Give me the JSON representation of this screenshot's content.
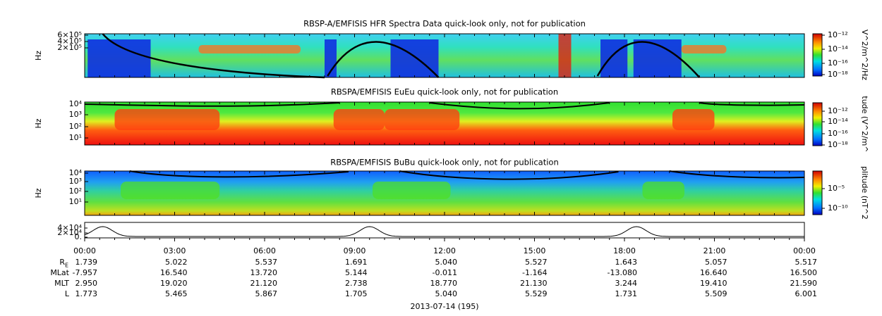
{
  "panels": [
    {
      "title": "RBSP-A/EMFISIS  HFR Spectra Data quick-look only, not for publication",
      "y_label": "Hz",
      "y_ticks": [
        "6×10⁵",
        "4×10⁵",
        "2×10⁵"
      ],
      "colorbar_label": "V^2/m^2/Hz",
      "colorbar_ticks": [
        "10⁻¹²",
        "10⁻¹⁴",
        "10⁻¹⁶",
        "10⁻¹⁸"
      ]
    },
    {
      "title": "RBSPA/EMFISIS  EuEu quick-look only, not for publication",
      "y_label": "Hz",
      "y_ticks": [
        "10⁴",
        "10³",
        "10²",
        "10¹"
      ],
      "colorbar_label": "tude (V^2/m^",
      "colorbar_ticks": [
        "10⁻¹²",
        "10⁻¹⁴",
        "10⁻¹⁶",
        "10⁻¹⁸"
      ]
    },
    {
      "title": "RBSPA/EMFISIS  BuBu quick-look only, not for publication",
      "y_label": "Hz",
      "y_ticks": [
        "10⁴",
        "10³",
        "10²",
        "10¹"
      ],
      "colorbar_label": "plitude (nT^2",
      "colorbar_ticks": [
        "10⁻⁵",
        "10⁻¹⁰"
      ]
    }
  ],
  "line_panel": {
    "y_ticks": [
      "4×10⁴",
      "2×10⁴",
      "0."
    ]
  },
  "time_labels": [
    "00:00",
    "03:00",
    "06:00",
    "09:00",
    "12:00",
    "15:00",
    "18:00",
    "21:00",
    "00:00"
  ],
  "ephemeris": {
    "rows": [
      {
        "label": "R",
        "sub": "E",
        "values": [
          "1.739",
          "5.022",
          "5.537",
          "1.691",
          "5.040",
          "5.527",
          "1.643",
          "5.057",
          "5.517"
        ]
      },
      {
        "label": "MLat",
        "values": [
          "-7.957",
          "16.540",
          "13.720",
          "5.144",
          "-0.011",
          "-1.164",
          "-13.080",
          "16.640",
          "16.500"
        ]
      },
      {
        "label": "MLT",
        "values": [
          "2.950",
          "19.020",
          "21.120",
          "2.738",
          "18.770",
          "21.130",
          "3.244",
          "19.410",
          "21.590"
        ]
      },
      {
        "label": "L",
        "values": [
          "1.773",
          "5.465",
          "5.867",
          "1.705",
          "5.040",
          "5.529",
          "1.731",
          "5.509",
          "6.001"
        ]
      }
    ]
  },
  "date": "2013-07-14 (195)"
}
